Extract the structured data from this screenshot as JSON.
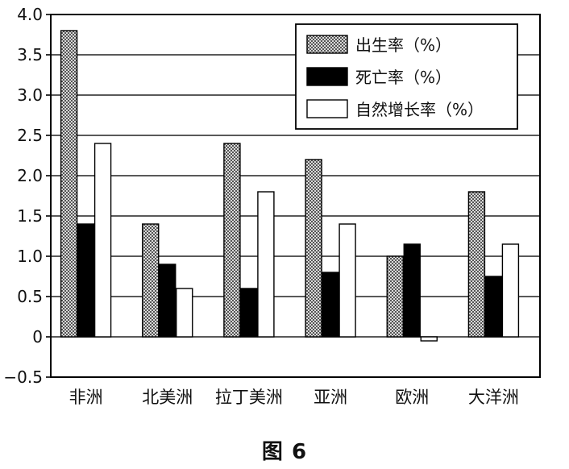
{
  "figure_caption": "图 6",
  "chart_data": {
    "type": "bar",
    "title": "",
    "xlabel": "",
    "ylabel": "",
    "categories": [
      "非洲",
      "北美洲",
      "拉丁美洲",
      "亚洲",
      "欧洲",
      "大洋洲"
    ],
    "series": [
      {
        "name": "出生率（%）",
        "values": [
          3.8,
          1.4,
          2.4,
          2.2,
          1.0,
          1.8
        ],
        "fill": "hatched",
        "color": "#8a8a8a"
      },
      {
        "name": "死亡率（%）",
        "values": [
          1.4,
          0.9,
          0.6,
          0.8,
          1.15,
          0.75
        ],
        "fill": "solid",
        "color": "#000000"
      },
      {
        "name": "自然增长率（%）",
        "values": [
          2.4,
          0.6,
          1.8,
          1.4,
          -0.05,
          1.15
        ],
        "fill": "solid",
        "color": "#ffffff"
      }
    ],
    "ylim": [
      -0.5,
      4.0
    ],
    "yticks": [
      "−0.5",
      "0",
      "0.5",
      "1.0",
      "1.5",
      "2.0",
      "2.5",
      "3.0",
      "3.5",
      "4.0"
    ],
    "ytick_values": [
      -0.5,
      0,
      0.5,
      1.0,
      1.5,
      2.0,
      2.5,
      3.0,
      3.5,
      4.0
    ],
    "grid": true,
    "legend_position": "top-right"
  }
}
